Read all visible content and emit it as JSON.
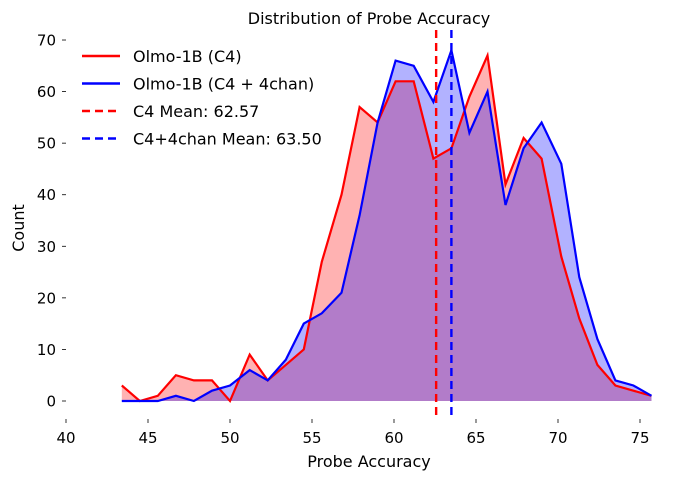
{
  "chart_data": {
    "type": "area",
    "title": "Distribution of Probe Accuracy",
    "xlabel": "Probe Accuracy",
    "ylabel": "Count",
    "xlim": [
      40,
      76
    ],
    "ylim": [
      -2,
      72
    ],
    "xticks": [
      40,
      45,
      50,
      55,
      60,
      65,
      70,
      75
    ],
    "yticks": [
      0,
      10,
      20,
      30,
      40,
      50,
      60,
      70
    ],
    "grid": false,
    "legend_position": "upper left",
    "x": [
      43.4,
      44.5,
      45.6,
      46.7,
      47.8,
      48.9,
      50.0,
      51.2,
      52.3,
      53.4,
      54.5,
      55.6,
      56.8,
      57.9,
      59.0,
      60.1,
      61.2,
      62.4,
      63.5,
      64.6,
      65.7,
      66.8,
      67.9,
      69.0,
      70.2,
      71.3,
      72.4,
      73.5,
      74.6,
      75.7
    ],
    "series": [
      {
        "name": "Olmo-1B (C4)",
        "color": "#ff0000",
        "fill": "#ff0000",
        "fill_alpha": 0.3,
        "values": [
          3,
          0,
          1,
          5,
          4,
          4,
          0,
          9,
          4,
          7,
          10,
          27,
          40,
          57,
          54,
          62,
          62,
          47,
          49,
          59,
          67,
          42,
          51,
          47,
          28,
          16,
          7,
          3,
          2,
          1
        ]
      },
      {
        "name": "Olmo-1B (C4 + 4chan)",
        "color": "#0000ff",
        "fill": "#0000ff",
        "fill_alpha": 0.3,
        "values": [
          0,
          0,
          0,
          1,
          0,
          2,
          3,
          6,
          4,
          8,
          15,
          17,
          21,
          36,
          54,
          66,
          65,
          58,
          68,
          52,
          60,
          38,
          49,
          54,
          46,
          24,
          12,
          4,
          3,
          1
        ]
      }
    ],
    "vlines": [
      {
        "name": "C4 Mean: 62.57",
        "x": 62.57,
        "color": "#ff0000",
        "style": "dashed"
      },
      {
        "name": "C4+4chan Mean: 63.50",
        "x": 63.5,
        "color": "#0000ff",
        "style": "dashed"
      }
    ],
    "legend": [
      {
        "label": "Olmo-1B (C4)",
        "color": "#ff0000",
        "style": "solid"
      },
      {
        "label": "Olmo-1B (C4 + 4chan)",
        "color": "#0000ff",
        "style": "solid"
      },
      {
        "label": "C4 Mean: 62.57",
        "color": "#ff0000",
        "style": "dashed"
      },
      {
        "label": "C4+4chan Mean: 63.50",
        "color": "#0000ff",
        "style": "dashed"
      }
    ]
  }
}
